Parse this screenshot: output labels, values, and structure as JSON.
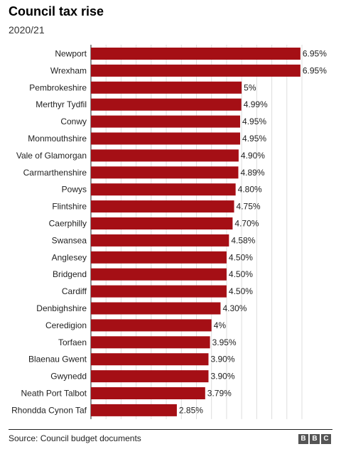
{
  "title": "Council tax rise",
  "subtitle": "2020/21",
  "source": "Source: Council budget documents",
  "logo": [
    "B",
    "B",
    "C"
  ],
  "colors": {
    "bar": "#a50f15",
    "grid": "#dddddd"
  },
  "chart_data": {
    "type": "bar",
    "orientation": "horizontal",
    "title": "Council tax rise",
    "subtitle": "2020/21",
    "xlim": [
      0,
      7
    ],
    "grid": true,
    "categories": [
      "Newport",
      "Wrexham",
      "Pembrokeshire",
      "Merthyr Tydfil",
      "Conwy",
      "Monmouthshire",
      "Vale of Glamorgan",
      "Carmarthenshire",
      "Powys",
      "Flintshire",
      "Caerphilly",
      "Swansea",
      "Anglesey",
      "Bridgend",
      "Cardiff",
      "Denbighshire",
      "Ceredigion",
      "Torfaen",
      "Blaenau Gwent",
      "Gwynedd",
      "Neath Port Talbot",
      "Rhondda Cynon Taf"
    ],
    "values": [
      6.95,
      6.95,
      5,
      4.99,
      4.95,
      4.95,
      4.9,
      4.89,
      4.8,
      4.75,
      4.7,
      4.58,
      4.5,
      4.5,
      4.5,
      4.3,
      4,
      3.95,
      3.9,
      3.9,
      3.79,
      2.85
    ],
    "labels": [
      "6.95%",
      "6.95%",
      "5%",
      "4.99%",
      "4.95%",
      "4.95%",
      "4.90%",
      "4.89%",
      "4.80%",
      "4.75%",
      "4.70%",
      "4.58%",
      "4.50%",
      "4.50%",
      "4.50%",
      "4.30%",
      "4%",
      "3.95%",
      "3.90%",
      "3.90%",
      "3.79%",
      "2.85%"
    ]
  }
}
